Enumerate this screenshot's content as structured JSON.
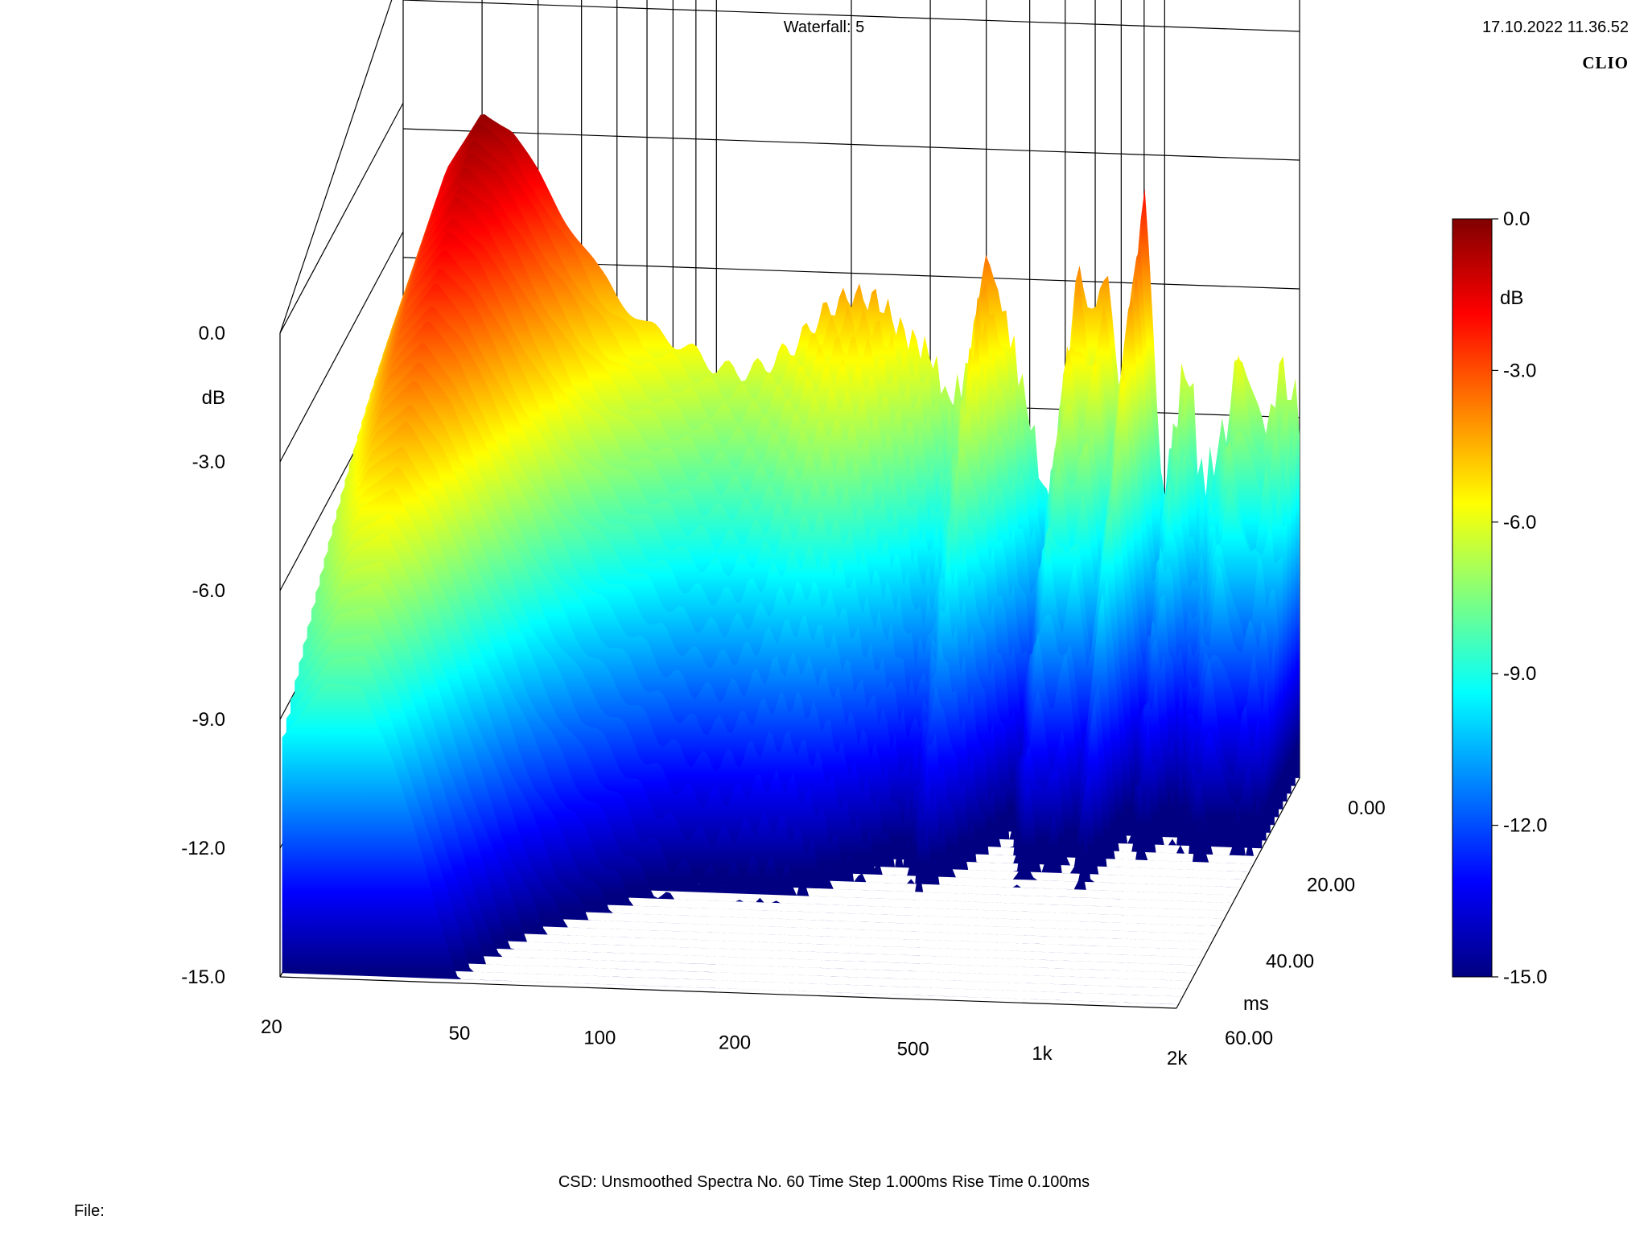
{
  "header": {
    "title": "Waterfall: 5",
    "date": "17.10.2022 11.36.52",
    "brand": "CLIO"
  },
  "footer": {
    "info": "CSD:   Unsmoothed   Spectra No. 60   Time Step 1.000ms   Rise Time 0.100ms",
    "file_label": "File:"
  },
  "chart_data": {
    "type": "waterfall",
    "title": "Waterfall: 5",
    "x_axis": {
      "label": "",
      "scale": "log",
      "range": [
        20,
        2000
      ],
      "ticks": [
        20,
        50,
        100,
        200,
        500,
        1000,
        2000
      ],
      "tick_labels": [
        "20",
        "50",
        "100",
        "200",
        "500",
        "1k",
        "2k"
      ]
    },
    "y_axis": {
      "label": "dB",
      "range": [
        -15.0,
        0.0
      ],
      "ticks": [
        0.0,
        -3.0,
        -6.0,
        -9.0,
        -12.0,
        -15.0
      ],
      "tick_labels": [
        "0.0",
        "-3.0",
        "-6.0",
        "-9.0",
        "-12.0",
        "-15.0"
      ]
    },
    "z_axis": {
      "label": "ms",
      "range": [
        0.0,
        60.0
      ],
      "ticks": [
        0.0,
        20.0,
        40.0,
        60.0
      ],
      "tick_labels": [
        "0.00",
        "20.00",
        "40.00",
        "60.00"
      ]
    },
    "colorbar": {
      "label": "dB",
      "range": [
        -15.0,
        0.0
      ],
      "ticks": [
        0.0,
        -3.0,
        -6.0,
        -9.0,
        -12.0,
        -15.0
      ],
      "tick_labels": [
        "0.0",
        "-3.0",
        "-6.0",
        "-9.0",
        "-12.0",
        "-15.0"
      ],
      "colormap": "jet"
    },
    "spectra_count": 60,
    "time_step_ms": 1.0,
    "rise_time_ms": 0.1,
    "first_spectrum": {
      "ms": 0.0,
      "freq_hz": [
        20,
        25,
        30,
        35,
        40,
        45,
        50,
        55,
        60,
        70,
        80,
        90,
        100,
        115,
        130,
        150,
        175,
        200,
        230,
        260,
        300,
        330,
        360,
        400,
        450,
        500,
        550,
        600,
        650,
        700,
        750,
        800,
        850,
        900,
        950,
        1000,
        1050,
        1100,
        1150,
        1200,
        1300,
        1400,
        1500,
        1600,
        1700,
        1800,
        1900,
        2000
      ],
      "level_db": [
        -4.5,
        -1.5,
        -0.1,
        -0.6,
        -1.5,
        -2.4,
        -3.1,
        -3.8,
        -4.3,
        -5.0,
        -5.3,
        -5.6,
        -5.9,
        -6.0,
        -5.8,
        -5.3,
        -4.5,
        -4.1,
        -4.2,
        -4.9,
        -5.4,
        -6.5,
        -5.9,
        -3.0,
        -4.8,
        -6.8,
        -9.0,
        -5.9,
        -3.1,
        -4.6,
        -3.5,
        -6.2,
        -3.9,
        -1.6,
        -5.3,
        -8.7,
        -7.1,
        -5.6,
        -5.8,
        -8.2,
        -7.6,
        -6.4,
        -4.8,
        -6.1,
        -6.8,
        -5.6,
        -5.9,
        -6.4
      ]
    }
  }
}
